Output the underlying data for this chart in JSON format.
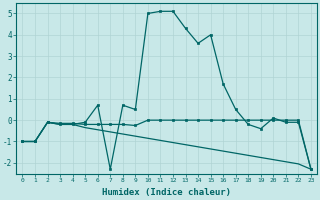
{
  "xlabel": "Humidex (Indice chaleur)",
  "bg_color": "#c8e8e8",
  "line_color": "#006666",
  "grid_color": "#b0d4d4",
  "xlim": [
    -0.5,
    23.5
  ],
  "ylim": [
    -2.5,
    5.5
  ],
  "xticks": [
    0,
    1,
    2,
    3,
    4,
    5,
    6,
    7,
    8,
    9,
    10,
    11,
    12,
    13,
    14,
    15,
    16,
    17,
    18,
    19,
    20,
    21,
    22,
    23
  ],
  "yticks": [
    -2,
    -1,
    0,
    1,
    2,
    3,
    4,
    5
  ],
  "line1_x": [
    0,
    1,
    2,
    3,
    4,
    5,
    6,
    7,
    8,
    9,
    10,
    11,
    12,
    13,
    14,
    15,
    16,
    17,
    18,
    19,
    20,
    21,
    22,
    23
  ],
  "line1_y": [
    -1.0,
    -1.0,
    -0.1,
    -0.2,
    -0.2,
    -0.1,
    0.7,
    -2.3,
    0.7,
    0.5,
    5.0,
    5.1,
    5.1,
    4.3,
    3.6,
    4.0,
    1.7,
    0.5,
    -0.2,
    -0.4,
    0.1,
    -0.1,
    -0.1,
    -2.3
  ],
  "line2_x": [
    0,
    1,
    2,
    3,
    4,
    5,
    6,
    7,
    8,
    9,
    10,
    11,
    12,
    13,
    14,
    15,
    16,
    17,
    18,
    19,
    20,
    21,
    22,
    23
  ],
  "line2_y": [
    -1.0,
    -1.0,
    -0.1,
    -0.15,
    -0.15,
    -0.2,
    -0.2,
    -0.2,
    -0.2,
    -0.25,
    0.0,
    0.0,
    0.0,
    0.0,
    0.0,
    0.0,
    0.0,
    0.0,
    0.0,
    0.0,
    0.0,
    0.0,
    0.0,
    -2.3
  ],
  "line3_x": [
    0,
    1,
    2,
    3,
    4,
    5,
    6,
    7,
    8,
    9,
    10,
    11,
    12,
    13,
    14,
    15,
    16,
    17,
    18,
    19,
    20,
    21,
    22,
    23
  ],
  "line3_y": [
    -1.0,
    -1.0,
    -0.1,
    -0.2,
    -0.2,
    -0.35,
    -0.45,
    -0.55,
    -0.65,
    -0.75,
    -0.85,
    -0.95,
    -1.05,
    -1.15,
    -1.25,
    -1.35,
    -1.45,
    -1.55,
    -1.65,
    -1.75,
    -1.85,
    -1.95,
    -2.05,
    -2.3
  ]
}
